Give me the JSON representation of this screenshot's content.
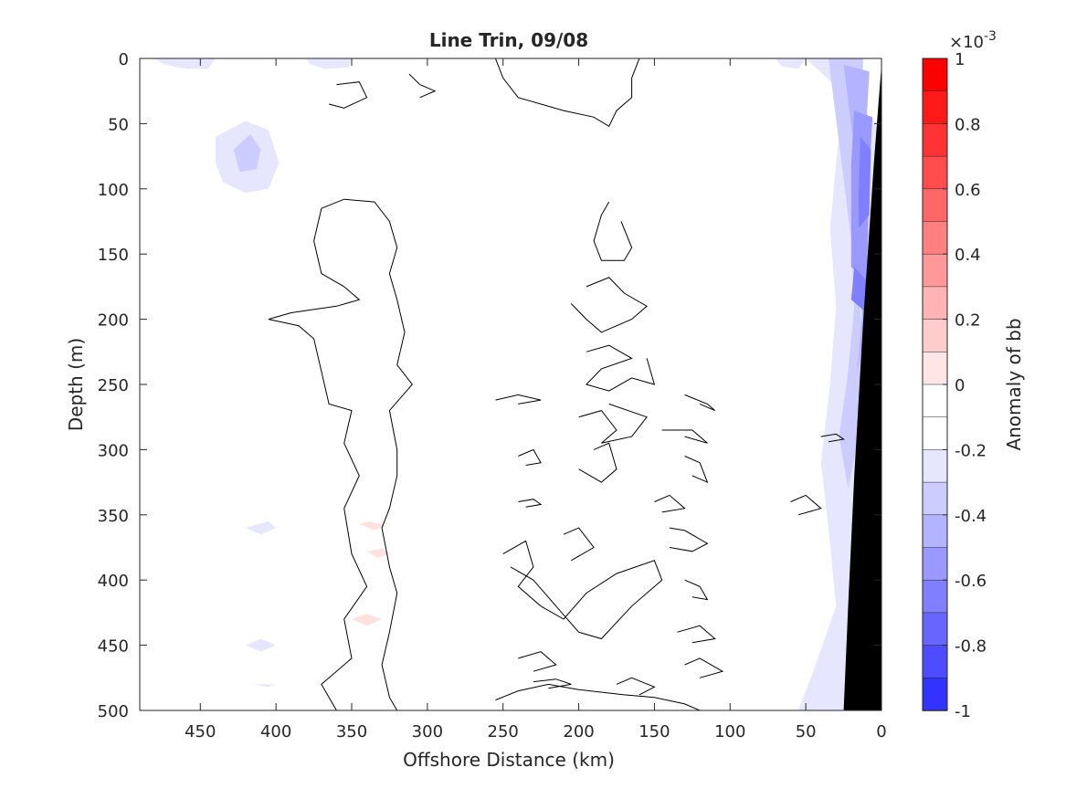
{
  "chart_data": {
    "type": "heatmap",
    "title": "Line Trin, 09/08",
    "xlabel": "Offshore Distance (km)",
    "ylabel": "Depth (m)",
    "xlim": [
      490,
      0
    ],
    "ylim": [
      0,
      500
    ],
    "x_ticks": [
      "450",
      "400",
      "350",
      "300",
      "250",
      "200",
      "150",
      "100",
      "50",
      "0"
    ],
    "y_ticks": [
      "0",
      "50",
      "100",
      "150",
      "200",
      "250",
      "300",
      "350",
      "400",
      "450",
      "500"
    ],
    "colorbar": {
      "label": "Anomaly of bb",
      "exponent": "×10",
      "exponent_power": "-3",
      "range": [
        -1,
        1
      ],
      "levels": [
        -1,
        -0.9,
        -0.8,
        -0.7,
        -0.6,
        -0.5,
        -0.4,
        -0.3,
        -0.2,
        -0.1,
        0,
        0.1,
        0.2,
        0.3,
        0.4,
        0.5,
        0.6,
        0.7,
        0.8,
        0.9,
        1
      ],
      "colors": [
        "#0000ff",
        "#1a1aff",
        "#3333ff",
        "#4d4dff",
        "#6666ff",
        "#8080ff",
        "#9999ff",
        "#b3b3ff",
        "#ccccff",
        "#e6e6ff",
        "#ffffff",
        "#ffffff",
        "#ffe6e6",
        "#ffcccc",
        "#ffb3b3",
        "#ff9999",
        "#ff8080",
        "#ff6666",
        "#ff4d4d",
        "#ff3333",
        "#ff1a1a",
        "#ff0000"
      ],
      "tick_labels": [
        "1",
        "0.8",
        "0.6",
        "0.4",
        "0.2",
        "0",
        "-0.2",
        "-0.4",
        "-0.6",
        "-0.8",
        "-1"
      ]
    },
    "grid": false,
    "bathymetry": {
      "color": "#000000",
      "boundary": [
        [
          0,
          5
        ],
        [
          5,
          80
        ],
        [
          12,
          200
        ],
        [
          18,
          320
        ],
        [
          22,
          420
        ],
        [
          25,
          500
        ]
      ]
    },
    "negative_anomaly_regions": [
      {
        "level": -0.1,
        "points": [
          [
            50,
            0
          ],
          [
            24,
            0
          ],
          [
            26,
            40
          ],
          [
            30,
            80
          ],
          [
            34,
            130
          ],
          [
            30,
            190
          ],
          [
            34,
            250
          ],
          [
            40,
            310
          ],
          [
            35,
            360
          ],
          [
            30,
            420
          ],
          [
            45,
            470
          ],
          [
            55,
            500
          ],
          [
            20,
            500
          ],
          [
            10,
            300
          ],
          [
            3,
            50
          ]
        ]
      },
      {
        "level": -0.2,
        "points": [
          [
            35,
            0
          ],
          [
            12,
            0
          ],
          [
            14,
            40
          ],
          [
            18,
            90
          ],
          [
            20,
            140
          ],
          [
            18,
            190
          ],
          [
            22,
            240
          ],
          [
            28,
            290
          ],
          [
            22,
            330
          ],
          [
            8,
            250
          ]
        ]
      },
      {
        "level": -0.3,
        "points": [
          [
            25,
            5
          ],
          [
            8,
            10
          ],
          [
            10,
            50
          ],
          [
            12,
            100
          ],
          [
            14,
            150
          ],
          [
            13,
            200
          ],
          [
            16,
            240
          ],
          [
            6,
            180
          ]
        ]
      },
      {
        "level": -0.4,
        "points": [
          [
            18,
            40
          ],
          [
            6,
            45
          ],
          [
            8,
            90
          ],
          [
            9,
            140
          ],
          [
            10,
            170
          ],
          [
            20,
            160
          ],
          [
            20,
            120
          ],
          [
            20,
            80
          ]
        ]
      },
      {
        "level": -0.5,
        "points": [
          [
            14,
            60
          ],
          [
            7,
            70
          ],
          [
            8,
            120
          ],
          [
            15,
            130
          ],
          [
            15,
            100
          ]
        ]
      },
      {
        "level": -0.5,
        "points": [
          [
            18,
            160
          ],
          [
            10,
            170
          ],
          [
            10,
            195
          ],
          [
            20,
            185
          ]
        ]
      },
      {
        "level": -0.1,
        "points": [
          [
            440,
            60
          ],
          [
            420,
            48
          ],
          [
            405,
            55
          ],
          [
            398,
            80
          ],
          [
            405,
            100
          ],
          [
            420,
            103
          ],
          [
            435,
            95
          ],
          [
            440,
            80
          ]
        ]
      },
      {
        "level": -0.2,
        "points": [
          [
            428,
            70
          ],
          [
            417,
            58
          ],
          [
            410,
            70
          ],
          [
            413,
            85
          ],
          [
            424,
            87
          ]
        ]
      },
      {
        "level": -0.1,
        "points": [
          [
            480,
            0
          ],
          [
            440,
            0
          ],
          [
            445,
            8
          ],
          [
            460,
            8
          ],
          [
            475,
            4
          ]
        ]
      },
      {
        "level": -0.1,
        "points": [
          [
            380,
            0
          ],
          [
            350,
            0
          ],
          [
            352,
            7
          ],
          [
            368,
            8
          ],
          [
            378,
            4
          ]
        ]
      },
      {
        "level": -0.1,
        "points": [
          [
            70,
            0
          ],
          [
            50,
            0
          ],
          [
            55,
            8
          ],
          [
            66,
            6
          ]
        ]
      },
      {
        "level": -0.1,
        "points": [
          [
            420,
            360
          ],
          [
            405,
            355
          ],
          [
            400,
            360
          ],
          [
            410,
            365
          ]
        ]
      },
      {
        "level": -0.1,
        "points": [
          [
            420,
            450
          ],
          [
            410,
            445
          ],
          [
            400,
            450
          ],
          [
            410,
            455
          ]
        ]
      },
      {
        "level": -0.1,
        "points": [
          [
            415,
            480
          ],
          [
            400,
            480
          ],
          [
            405,
            482
          ]
        ]
      }
    ],
    "positive_anomaly_regions": [
      {
        "level": 0.1,
        "points": [
          [
            345,
            357
          ],
          [
            338,
            355
          ],
          [
            328,
            358
          ],
          [
            335,
            362
          ]
        ]
      },
      {
        "level": 0.1,
        "points": [
          [
            340,
            378
          ],
          [
            330,
            376
          ],
          [
            325,
            380
          ],
          [
            333,
            383
          ]
        ]
      },
      {
        "level": 0.1,
        "points": [
          [
            350,
            430
          ],
          [
            340,
            426
          ],
          [
            330,
            430
          ],
          [
            340,
            435
          ]
        ]
      }
    ],
    "zero_contours": [
      [
        [
          255,
          0
        ],
        [
          250,
          15
        ],
        [
          240,
          30
        ],
        [
          210,
          40
        ],
        [
          190,
          45
        ],
        [
          180,
          52
        ],
        [
          175,
          40
        ],
        [
          165,
          30
        ],
        [
          165,
          15
        ],
        [
          160,
          0
        ]
      ],
      [
        [
          360,
          20
        ],
        [
          345,
          18
        ],
        [
          340,
          30
        ],
        [
          355,
          38
        ],
        [
          365,
          35
        ]
      ],
      [
        [
          312,
          12
        ],
        [
          305,
          20
        ],
        [
          295,
          25
        ],
        [
          305,
          30
        ]
      ],
      [
        [
          355,
          108
        ],
        [
          370,
          115
        ],
        [
          375,
          140
        ],
        [
          370,
          165
        ],
        [
          355,
          175
        ],
        [
          345,
          185
        ],
        [
          360,
          190
        ],
        [
          390,
          195
        ],
        [
          405,
          200
        ],
        [
          385,
          205
        ],
        [
          375,
          215
        ],
        [
          370,
          240
        ],
        [
          365,
          265
        ],
        [
          350,
          270
        ],
        [
          355,
          295
        ],
        [
          345,
          320
        ],
        [
          355,
          345
        ],
        [
          350,
          380
        ],
        [
          340,
          405
        ],
        [
          355,
          430
        ],
        [
          350,
          460
        ],
        [
          370,
          480
        ],
        [
          360,
          500
        ]
      ],
      [
        [
          355,
          108
        ],
        [
          335,
          110
        ],
        [
          325,
          125
        ],
        [
          320,
          145
        ],
        [
          325,
          165
        ],
        [
          320,
          185
        ],
        [
          315,
          210
        ],
        [
          320,
          235
        ],
        [
          310,
          250
        ],
        [
          325,
          270
        ],
        [
          320,
          300
        ],
        [
          320,
          320
        ],
        [
          325,
          345
        ],
        [
          330,
          360
        ],
        [
          325,
          390
        ],
        [
          320,
          410
        ],
        [
          325,
          440
        ],
        [
          330,
          465
        ],
        [
          325,
          490
        ],
        [
          320,
          500
        ]
      ],
      [
        [
          180,
          110
        ],
        [
          185,
          120
        ],
        [
          190,
          140
        ],
        [
          185,
          155
        ],
        [
          170,
          155
        ],
        [
          165,
          145
        ],
        [
          172,
          125
        ]
      ],
      [
        [
          195,
          175
        ],
        [
          180,
          168
        ],
        [
          170,
          180
        ],
        [
          155,
          190
        ],
        [
          165,
          200
        ],
        [
          185,
          210
        ],
        [
          195,
          200
        ],
        [
          205,
          188
        ]
      ],
      [
        [
          195,
          225
        ],
        [
          180,
          220
        ],
        [
          165,
          230
        ],
        [
          185,
          238
        ],
        [
          195,
          250
        ],
        [
          180,
          255
        ],
        [
          165,
          245
        ],
        [
          150,
          250
        ],
        [
          155,
          230
        ]
      ],
      [
        [
          255,
          262
        ],
        [
          240,
          258
        ],
        [
          225,
          262
        ],
        [
          240,
          265
        ]
      ],
      [
        [
          200,
          275
        ],
        [
          185,
          270
        ],
        [
          175,
          285
        ],
        [
          185,
          295
        ],
        [
          165,
          290
        ],
        [
          155,
          275
        ],
        [
          180,
          265
        ]
      ],
      [
        [
          130,
          258
        ],
        [
          115,
          265
        ],
        [
          110,
          270
        ],
        [
          120,
          265
        ]
      ],
      [
        [
          145,
          285
        ],
        [
          125,
          285
        ],
        [
          115,
          295
        ],
        [
          130,
          290
        ]
      ],
      [
        [
          190,
          300
        ],
        [
          180,
          295
        ],
        [
          175,
          315
        ],
        [
          185,
          325
        ],
        [
          200,
          315
        ]
      ],
      [
        [
          240,
          305
        ],
        [
          230,
          300
        ],
        [
          225,
          310
        ],
        [
          235,
          312
        ]
      ],
      [
        [
          130,
          305
        ],
        [
          120,
          310
        ],
        [
          115,
          325
        ],
        [
          125,
          320
        ]
      ],
      [
        [
          60,
          340
        ],
        [
          50,
          335
        ],
        [
          40,
          345
        ],
        [
          55,
          350
        ]
      ],
      [
        [
          150,
          340
        ],
        [
          140,
          335
        ],
        [
          130,
          345
        ],
        [
          145,
          348
        ]
      ],
      [
        [
          240,
          340
        ],
        [
          230,
          338
        ],
        [
          225,
          342
        ],
        [
          235,
          344
        ]
      ],
      [
        [
          140,
          360
        ],
        [
          130,
          362
        ],
        [
          115,
          372
        ],
        [
          125,
          378
        ],
        [
          140,
          375
        ]
      ],
      [
        [
          250,
          380
        ],
        [
          235,
          370
        ],
        [
          230,
          390
        ],
        [
          240,
          405
        ],
        [
          225,
          420
        ],
        [
          210,
          430
        ],
        [
          195,
          410
        ],
        [
          175,
          395
        ],
        [
          150,
          385
        ],
        [
          145,
          400
        ],
        [
          165,
          420
        ],
        [
          185,
          445
        ],
        [
          200,
          440
        ],
        [
          215,
          420
        ],
        [
          230,
          400
        ],
        [
          245,
          390
        ]
      ],
      [
        [
          210,
          365
        ],
        [
          200,
          360
        ],
        [
          190,
          375
        ],
        [
          205,
          385
        ]
      ],
      [
        [
          130,
          400
        ],
        [
          120,
          405
        ],
        [
          115,
          415
        ],
        [
          125,
          413
        ]
      ],
      [
        [
          135,
          440
        ],
        [
          120,
          435
        ],
        [
          110,
          445
        ],
        [
          125,
          448
        ]
      ],
      [
        [
          240,
          460
        ],
        [
          225,
          455
        ],
        [
          215,
          465
        ],
        [
          230,
          470
        ]
      ],
      [
        [
          130,
          465
        ],
        [
          120,
          460
        ],
        [
          105,
          470
        ],
        [
          120,
          475
        ]
      ],
      [
        [
          230,
          478
        ],
        [
          215,
          476
        ],
        [
          205,
          480
        ],
        [
          220,
          483
        ]
      ],
      [
        [
          255,
          492
        ],
        [
          240,
          485
        ],
        [
          220,
          480
        ],
        [
          200,
          484
        ],
        [
          170,
          488
        ],
        [
          150,
          490
        ],
        [
          130,
          495
        ],
        [
          120,
          500
        ]
      ],
      [
        [
          175,
          480
        ],
        [
          165,
          475
        ],
        [
          150,
          482
        ],
        [
          160,
          488
        ]
      ],
      [
        [
          40,
          290
        ],
        [
          30,
          288
        ],
        [
          25,
          292
        ],
        [
          35,
          294
        ]
      ]
    ]
  }
}
